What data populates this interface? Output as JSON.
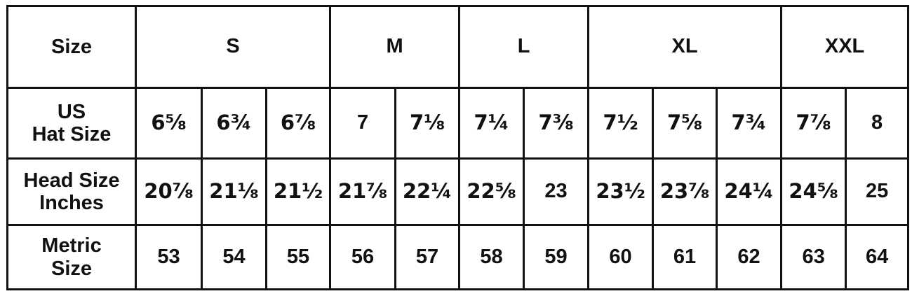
{
  "header": {
    "label": "Size",
    "groups": [
      {
        "label": "S",
        "span": 3
      },
      {
        "label": "M",
        "span": 2
      },
      {
        "label": "L",
        "span": 2
      },
      {
        "label": "XL",
        "span": 3
      },
      {
        "label": "XXL",
        "span": 2
      }
    ]
  },
  "rows": [
    {
      "label_line1": "US",
      "label_line2": "Hat Size",
      "values": [
        "6⅝",
        "6¾",
        "6⅞",
        "7",
        "7⅛",
        "7¼",
        "7⅜",
        "7½",
        "7⅝",
        "7¾",
        "7⅞",
        "8"
      ]
    },
    {
      "label_line1": "Head Size",
      "label_line2": "Inches",
      "values": [
        "20⅞",
        "21⅛",
        "21½",
        "21⅞",
        "22¼",
        "22⅝",
        "23",
        "23½",
        "23⅞",
        "24¼",
        "24⅝",
        "25"
      ]
    },
    {
      "label_line1": "Metric",
      "label_line2": "Size",
      "values": [
        "53",
        "54",
        "55",
        "56",
        "57",
        "58",
        "59",
        "60",
        "61",
        "62",
        "63",
        "64"
      ]
    }
  ]
}
